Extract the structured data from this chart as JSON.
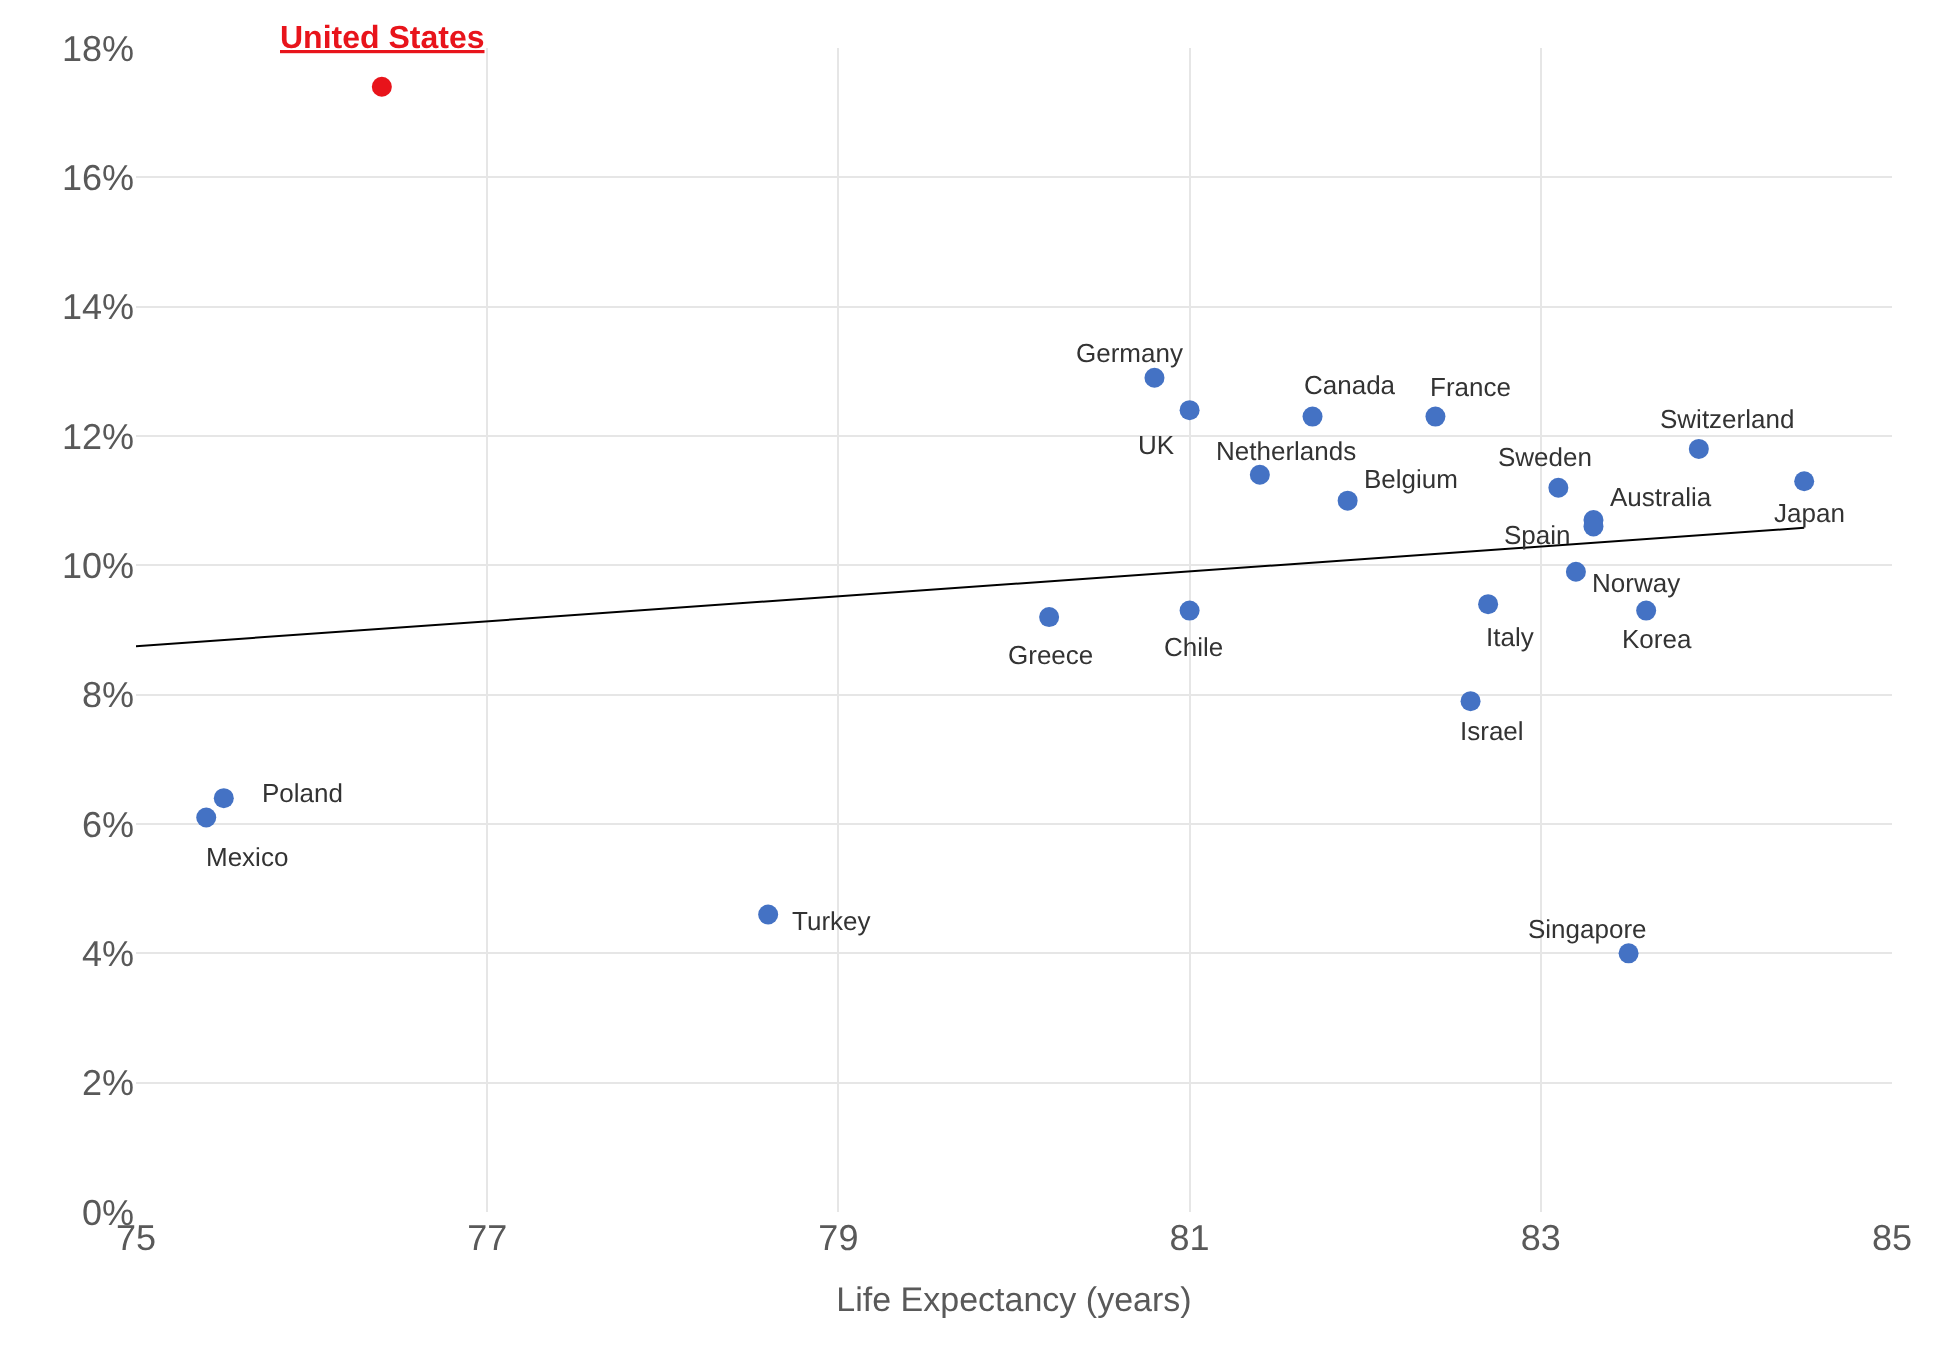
{
  "chart_data": {
    "type": "scatter",
    "xlabel": "Life Expectancy (years)",
    "xlim": [
      75,
      85
    ],
    "xticks": [
      75,
      77,
      79,
      81,
      83,
      85
    ],
    "ylim": [
      0,
      18
    ],
    "yticks": [
      {
        "value": 0,
        "label": "0%"
      },
      {
        "value": 2,
        "label": "2%"
      },
      {
        "value": 4,
        "label": "4%"
      },
      {
        "value": 6,
        "label": "6%"
      },
      {
        "value": 8,
        "label": "8%"
      },
      {
        "value": 10,
        "label": "10%"
      },
      {
        "value": 12,
        "label": "12%"
      },
      {
        "value": 14,
        "label": "14%"
      },
      {
        "value": 16,
        "label": "16%"
      },
      {
        "value": 18,
        "label": "18%"
      }
    ],
    "grid": true,
    "series": [
      {
        "marker": "circle",
        "x": [
          76.4,
          80.8,
          81.0,
          81.7,
          82.4,
          81.4,
          81.9,
          83.1,
          83.9,
          84.5,
          83.3,
          83.3,
          83.2,
          83.6,
          82.7,
          82.6,
          80.2,
          81.0,
          75.5,
          75.4,
          78.6,
          83.5
        ],
        "values": [
          17.4,
          12.9,
          12.4,
          12.3,
          12.3,
          11.4,
          11.0,
          11.2,
          11.8,
          11.3,
          10.7,
          10.6,
          9.9,
          9.3,
          9.4,
          7.9,
          9.2,
          9.3,
          6.4,
          6.1,
          4.6,
          4.0
        ],
        "colors": [
          "#e8141b",
          "#4472c4",
          "#4472c4",
          "#4472c4",
          "#4472c4",
          "#4472c4",
          "#4472c4",
          "#4472c4",
          "#4472c4",
          "#4472c4",
          "#4472c4",
          "#4472c4",
          "#4472c4",
          "#4472c4",
          "#4472c4",
          "#4472c4",
          "#4472c4",
          "#4472c4",
          "#4472c4",
          "#4472c4",
          "#4472c4",
          "#4472c4"
        ]
      },
      {
        "type": "line",
        "color": "#000000",
        "x": [
          75,
          84.5
        ],
        "values": [
          8.75,
          10.58
        ],
        "line_style": "solid",
        "marker": "none"
      }
    ],
    "annotations": [
      {
        "text": "United States",
        "x": 76.4,
        "y": 17.4
      },
      {
        "text": "Germany",
        "x": 80.8,
        "y": 12.9
      },
      {
        "text": "UK",
        "x": 81.0,
        "y": 12.4
      },
      {
        "text": "Canada",
        "x": 81.7,
        "y": 12.3
      },
      {
        "text": "France",
        "x": 82.4,
        "y": 12.3
      },
      {
        "text": "Netherlands",
        "x": 81.4,
        "y": 11.4
      },
      {
        "text": "Belgium",
        "x": 81.9,
        "y": 11.0
      },
      {
        "text": "Sweden",
        "x": 83.1,
        "y": 11.2
      },
      {
        "text": "Switzerland",
        "x": 83.9,
        "y": 11.8
      },
      {
        "text": "Japan",
        "x": 84.5,
        "y": 11.3
      },
      {
        "text": "Australia",
        "x": 83.3,
        "y": 10.7
      },
      {
        "text": "Spain",
        "x": 83.3,
        "y": 10.6
      },
      {
        "text": "Norway",
        "x": 83.2,
        "y": 9.9
      },
      {
        "text": "Korea",
        "x": 83.6,
        "y": 9.3
      },
      {
        "text": "Italy",
        "x": 82.7,
        "y": 9.4
      },
      {
        "text": "Israel",
        "x": 82.6,
        "y": 7.9
      },
      {
        "text": "Greece",
        "x": 80.2,
        "y": 9.2
      },
      {
        "text": "Chile",
        "x": 81.0,
        "y": 9.3
      },
      {
        "text": "Poland",
        "x": 75.5,
        "y": 6.4
      },
      {
        "text": "Mexico",
        "x": 75.4,
        "y": 6.1
      },
      {
        "text": "Turkey",
        "x": 78.6,
        "y": 4.6
      },
      {
        "text": "Singapore",
        "x": 83.5,
        "y": 4.0
      }
    ]
  }
}
